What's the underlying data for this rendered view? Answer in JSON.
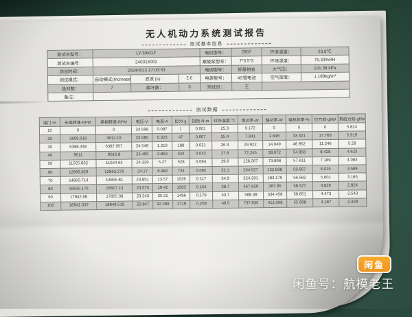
{
  "watermark": {
    "logo_text": "闲鱼",
    "caption": "闲鱼号：航模老王",
    "brand_color": "#f49d2f"
  },
  "report": {
    "title": "无人机动力系统测试报告",
    "sections": {
      "info": "测试基本信息",
      "data": "测试数据"
    },
    "info_table": {
      "row1": [
        {
          "label": "测试台型号：",
          "value": "LY-30KGF"
        },
        {
          "label": "电机型号：",
          "value": "2807"
        },
        {
          "label": "环境温度：",
          "value": "23.8℃"
        }
      ],
      "row2": [
        {
          "label": "测试台编号：",
          "value": "240315002"
        },
        {
          "label": "螺旋桨型号：",
          "value": "7*3.5*3"
        },
        {
          "label": "环境湿度：",
          "value": "75.33%RH"
        }
      ],
      "row3": [
        {
          "label": "测试时间：",
          "value": "2024/4/13 17:03:53"
        },
        {
          "label": "电调型号：",
          "value": "好盈铂金"
        },
        {
          "label": "大气压：",
          "value": "101.38  kPa"
        }
      ],
      "row4": [
        {
          "label": "测试模式：",
          "value": "自动模式(Increase)"
        },
        {
          "label": "滤波 (s)：",
          "value": "2.0"
        },
        {
          "label": "电源型号：",
          "value": "4S锂电池"
        },
        {
          "label": "空气密度：",
          "value": "1.189kg/m³"
        }
      ],
      "row5": [
        {
          "label": "极对数：",
          "value": "7"
        },
        {
          "label": "桨叶数：",
          "value": "3"
        },
        {
          "label": "测试员：",
          "value": "王"
        }
      ],
      "row6": [
        {
          "label": "备注：",
          "value": ""
        }
      ]
    },
    "data_table": {
      "headers": [
        "油门-%",
        "光电转速-RPM",
        "换相转速-RPM",
        "电压-V",
        "电流-A",
        "拉力-g",
        "扭矩-N·m",
        "红外温度-℃",
        "电功率-W",
        "轴功率-W",
        "电机效率-%",
        "拉力效-gf/W",
        "系统力效-gf/W"
      ],
      "rows": [
        [
          "10",
          "0",
          "0",
          "24.599",
          "0.087",
          "1",
          "0.001",
          "25.3",
          "0.172",
          "0",
          "0",
          "0",
          "5.814"
        ],
        [
          "20",
          "3609.619",
          "3612.19",
          "24.585",
          "0.323",
          "47",
          "0.007",
          "25.4",
          "7.941",
          "2.646",
          "33.321",
          "17.763",
          "5.919"
        ],
        [
          "30",
          "6388.348",
          "6387.957",
          "24.546",
          "1.219",
          "188",
          "0.021",
          "26.3",
          "29.922",
          "14.049",
          "46.952",
          "11.246",
          "5.28"
        ],
        [
          "40",
          "9011",
          "9016.8",
          "24.465",
          "2.853",
          "334",
          "0.042",
          "27.6",
          "72.245",
          "38.672",
          "54.858",
          "8.428",
          "4.623"
        ],
        [
          "50",
          "11025.832",
          "11024.63",
          "24.329",
          "5.27",
          "528",
          "0.064",
          "29.6",
          "128.267",
          "73.898",
          "57.611",
          "7.189",
          "4.083"
        ],
        [
          "60",
          "12866.829",
          "12863.276",
          "24.17",
          "8.482",
          "734",
          "0.092",
          "32.1",
          "204.527",
          "122.838",
          "59.667",
          "6.015",
          "3.589"
        ],
        [
          "70",
          "14850.714",
          "14855.81",
          "23.851",
          "13.57",
          "1026",
          "0.117",
          "34.9",
          "324.201",
          "183.179",
          "56.582",
          "5.601",
          "3.165"
        ],
        [
          "80",
          "16815.176",
          "16817.13",
          "23.575",
          "19.42",
          "1283",
          "0.154",
          "38.7",
          "457.826",
          "287.95",
          "58.527",
          "4.826",
          "2.824"
        ],
        [
          "90",
          "17842.68",
          "17855.08",
          "23.243",
          "25.31",
          "1496",
          "0.179",
          "43.7",
          "588.38",
          "334.458",
          "56.851",
          "4.473",
          "2.543"
        ],
        [
          "100",
          "18941.037",
          "18949.519",
          "22.847",
          "32.289",
          "1719",
          "0.208",
          "49.5",
          "737.935",
          "412.568",
          "55.908",
          "4.187",
          "2.329"
        ]
      ]
    }
  }
}
